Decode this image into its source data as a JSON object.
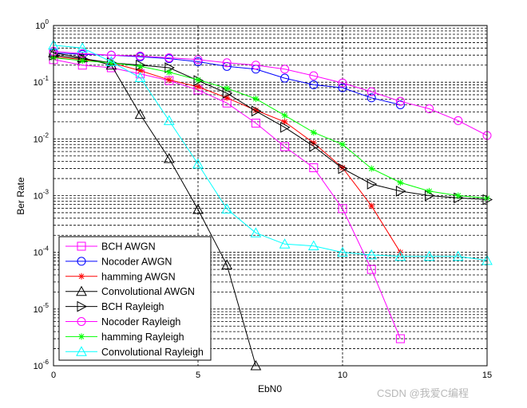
{
  "chart_data": {
    "type": "line",
    "title": "",
    "xlabel": "EbN0",
    "ylabel": "Ber Rate",
    "xlim": [
      0,
      15
    ],
    "ylim": [
      1e-06,
      1
    ],
    "yscale": "log",
    "grid": "dashed: vertical at 5,10; horizontal at every log minor",
    "x_ticks": [
      "0",
      "5",
      "10",
      "15"
    ],
    "x_tick_values": [
      0,
      5,
      10,
      15
    ],
    "y_ticks": [
      {
        "base": "10",
        "exp": "0",
        "value": 1
      },
      {
        "base": "10",
        "exp": "-1",
        "value": 0.1
      },
      {
        "base": "10",
        "exp": "-2",
        "value": 0.01
      },
      {
        "base": "10",
        "exp": "-3",
        "value": 0.001
      },
      {
        "base": "10",
        "exp": "-4",
        "value": 0.0001
      },
      {
        "base": "10",
        "exp": "-5",
        "value": 1e-05
      },
      {
        "base": "10",
        "exp": "-6",
        "value": 1e-06
      }
    ],
    "legend_position": "bottom-left",
    "series": [
      {
        "name": "BCH AWGN",
        "color": "#ff00ff",
        "marker": "square",
        "x": [
          0,
          1,
          2,
          3,
          4,
          5,
          6,
          7,
          8,
          9,
          10,
          11,
          12
        ],
        "y": [
          0.25,
          0.2,
          0.18,
          0.14,
          0.107,
          0.073,
          0.043,
          0.019,
          0.0073,
          0.0031,
          0.00059,
          5e-05,
          3e-06
        ]
      },
      {
        "name": "Nocoder AWGN",
        "color": "#0000ff",
        "marker": "circle",
        "x": [
          0,
          1,
          2,
          3,
          4,
          5,
          6,
          7,
          8,
          9,
          10,
          11,
          12
        ],
        "y": [
          0.33,
          0.31,
          0.3,
          0.28,
          0.26,
          0.23,
          0.19,
          0.17,
          0.118,
          0.09,
          0.08,
          0.053,
          0.04
        ]
      },
      {
        "name": "hamming AWGN",
        "color": "#ff0000",
        "marker": "star",
        "x": [
          0,
          1,
          2,
          3,
          4,
          5,
          6,
          7,
          8,
          9,
          10,
          11,
          12
        ],
        "y": [
          0.28,
          0.25,
          0.22,
          0.16,
          0.11,
          0.083,
          0.053,
          0.032,
          0.02,
          0.0085,
          0.0031,
          0.00066,
          0.0001
        ]
      },
      {
        "name": "Convolutional AWGN",
        "color": "#000000",
        "marker": "triangle-up",
        "x": [
          0,
          1,
          2,
          3,
          4,
          5,
          6,
          7
        ],
        "y": [
          0.33,
          0.27,
          0.2,
          0.027,
          0.0045,
          0.00057,
          6e-05,
          1e-06
        ]
      },
      {
        "name": "BCH Rayleigh",
        "color": "#000000",
        "marker": "triangle-right",
        "x": [
          0,
          1,
          2,
          3,
          4,
          5,
          6,
          7,
          8,
          9,
          10,
          11,
          12,
          13,
          14,
          15
        ],
        "y": [
          0.3,
          0.26,
          0.22,
          0.2,
          0.18,
          0.107,
          0.064,
          0.031,
          0.016,
          0.0074,
          0.003,
          0.0016,
          0.0012,
          0.001,
          0.00091,
          0.00085
        ]
      },
      {
        "name": "Nocoder Rayleigh",
        "color": "#ff00ff",
        "marker": "circle",
        "x": [
          0,
          1,
          2,
          3,
          4,
          5,
          6,
          7,
          8,
          9,
          10,
          11,
          12,
          13,
          14,
          15
        ],
        "y": [
          0.35,
          0.32,
          0.3,
          0.29,
          0.27,
          0.25,
          0.22,
          0.2,
          0.17,
          0.13,
          0.097,
          0.068,
          0.046,
          0.034,
          0.021,
          0.0115
        ]
      },
      {
        "name": "hamming Rayleigh",
        "color": "#00ff00",
        "marker": "star",
        "x": [
          0,
          1,
          2,
          3,
          4,
          5,
          6,
          7,
          8,
          9,
          10,
          11,
          12,
          13,
          14,
          15
        ],
        "y": [
          0.27,
          0.24,
          0.22,
          0.19,
          0.15,
          0.11,
          0.078,
          0.051,
          0.026,
          0.013,
          0.008,
          0.003,
          0.0017,
          0.0012,
          0.001,
          0.0009
        ]
      },
      {
        "name": "Convolutional Rayleigh",
        "color": "#00ffff",
        "marker": "triangle-up",
        "x": [
          0,
          1,
          2,
          3,
          4,
          5,
          6,
          7,
          8,
          9,
          10,
          11,
          12,
          13,
          14,
          15
        ],
        "y": [
          0.45,
          0.4,
          0.23,
          0.12,
          0.021,
          0.0036,
          0.00058,
          0.00022,
          0.00014,
          0.00013,
          0.0001,
          9e-05,
          8.5e-05,
          8.5e-05,
          8.5e-05,
          7.2e-05
        ]
      }
    ]
  },
  "watermark": "CSDN @我爱C编程"
}
